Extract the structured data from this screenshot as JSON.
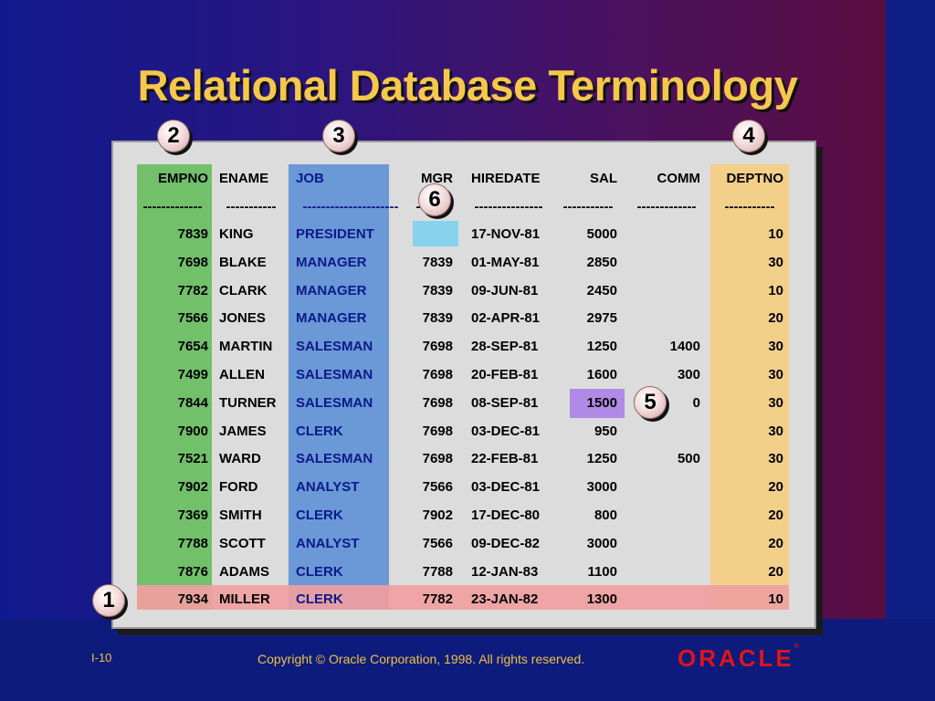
{
  "title": "Relational Database Terminology",
  "columns": [
    {
      "name": "EMPNO",
      "separator": "-------------"
    },
    {
      "name": "ENAME",
      "separator": "-----------"
    },
    {
      "name": "JOB",
      "separator": "---------------------"
    },
    {
      "name": "MGR",
      "separator": "-------"
    },
    {
      "name": "HIREDATE",
      "separator": "---------------"
    },
    {
      "name": "SAL",
      "separator": "-----------"
    },
    {
      "name": "COMM",
      "separator": "-------------"
    },
    {
      "name": "DEPTNO",
      "separator": "-----------"
    }
  ],
  "rows": [
    [
      "7839",
      "KING",
      "PRESIDENT",
      "",
      "17-NOV-81",
      "5000",
      "",
      "10"
    ],
    [
      "7698",
      "BLAKE",
      "MANAGER",
      "7839",
      "01-MAY-81",
      "2850",
      "",
      "30"
    ],
    [
      "7782",
      "CLARK",
      "MANAGER",
      "7839",
      "09-JUN-81",
      "2450",
      "",
      "10"
    ],
    [
      "7566",
      "JONES",
      "MANAGER",
      "7839",
      "02-APR-81",
      "2975",
      "",
      "20"
    ],
    [
      "7654",
      "MARTIN",
      "SALESMAN",
      "7698",
      "28-SEP-81",
      "1250",
      "1400",
      "30"
    ],
    [
      "7499",
      "ALLEN",
      "SALESMAN",
      "7698",
      "20-FEB-81",
      "1600",
      "300",
      "30"
    ],
    [
      "7844",
      "TURNER",
      "SALESMAN",
      "7698",
      "08-SEP-81",
      "1500",
      "0",
      "30"
    ],
    [
      "7900",
      "JAMES",
      "CLERK",
      "7698",
      "03-DEC-81",
      "950",
      "",
      "30"
    ],
    [
      "7521",
      "WARD",
      "SALESMAN",
      "7698",
      "22-FEB-81",
      "1250",
      "500",
      "30"
    ],
    [
      "7902",
      "FORD",
      "ANALYST",
      "7566",
      "03-DEC-81",
      "3000",
      "",
      "20"
    ],
    [
      "7369",
      "SMITH",
      "CLERK",
      "7902",
      "17-DEC-80",
      "800",
      "",
      "20"
    ],
    [
      "7788",
      "SCOTT",
      "ANALYST",
      "7566",
      "09-DEC-82",
      "3000",
      "",
      "20"
    ],
    [
      "7876",
      "ADAMS",
      "CLERK",
      "7788",
      "12-JAN-83",
      "1100",
      "",
      "20"
    ],
    [
      "7934",
      "MILLER",
      "CLERK",
      "7782",
      "23-JAN-82",
      "1300",
      "",
      "10"
    ]
  ],
  "callouts": [
    "1",
    "2",
    "3",
    "4",
    "5",
    "6"
  ],
  "footer": {
    "page": "I-10",
    "copyright": "Copyright © Oracle Corporation, 1998. All rights reserved.",
    "logo": "ORACLE",
    "logo_mark": "®"
  },
  "colors": {
    "title": "#f6c84a",
    "empno_highlight": "#72c06a",
    "job_highlight": "#6b98d6",
    "deptno_highlight": "#f2d08a",
    "row_highlight": "#f0a0a0",
    "null_mgr_highlight": "#87d3ee",
    "sal_highlight": "#b08ae6",
    "logo": "#e0141a"
  }
}
